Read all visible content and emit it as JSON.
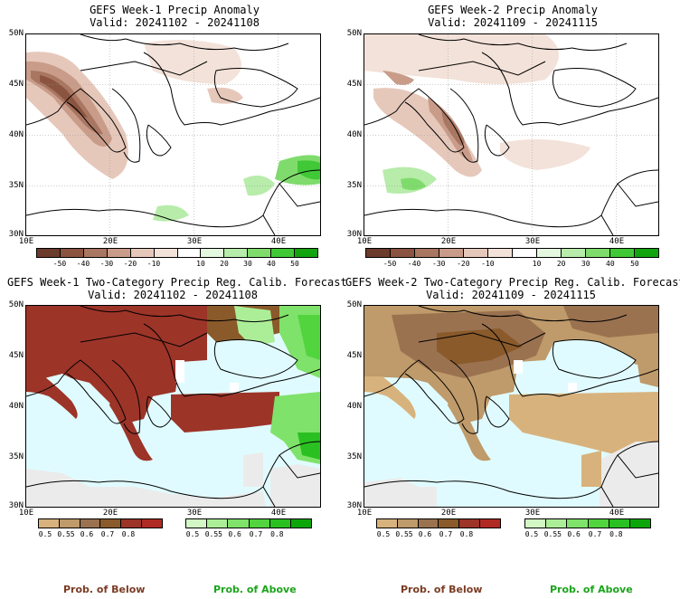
{
  "panels": [
    {
      "title_line1": "GEFS Week-1 Precip Anomaly",
      "title_line2": "Valid: 20241102 - 20241108"
    },
    {
      "title_line1": "GEFS Week-2 Precip Anomaly",
      "title_line2": "Valid: 20241109 - 20241115"
    },
    {
      "title_line1": "GEFS Week-1 Two-Category Precip Reg. Calib. Forecast",
      "title_line2": "Valid: 20241102 - 20241108"
    },
    {
      "title_line1": "GEFS Week-2 Two-Category Precip Reg. Calib. Forecast",
      "title_line2": "Valid: 20241109 - 20241115"
    }
  ],
  "lat_labels": [
    "50N",
    "45N",
    "40N",
    "35N",
    "30N"
  ],
  "lon_labels": [
    "10E",
    "20E",
    "30E",
    "40E"
  ],
  "anomaly_scale": {
    "ticks": [
      "-50",
      "-40",
      "-30",
      "-20",
      "-10",
      "10",
      "20",
      "30",
      "40",
      "50"
    ],
    "colors": [
      "#6b3b2b",
      "#8a5440",
      "#a97662",
      "#c99c8a",
      "#e6c8bb",
      "#f3e2d9",
      "#ffffff",
      "#e4f7df",
      "#b7ecaa",
      "#7fdc6c",
      "#40c836",
      "#12a40e"
    ]
  },
  "below_scale": {
    "ticks": [
      "0.5",
      "0.55",
      "0.6",
      "0.7",
      "0.8"
    ],
    "colors": [
      "#d8b27d",
      "#bf9a6a",
      "#9a7250",
      "#8a5a2b",
      "#9c3428",
      "#b02a24"
    ]
  },
  "above_scale": {
    "ticks": [
      "0.5",
      "0.55",
      "0.6",
      "0.7",
      "0.8"
    ],
    "colors": [
      "#d2f7c4",
      "#acee98",
      "#7fe26a",
      "#52d43f",
      "#2ac022",
      "#0ca60a"
    ]
  },
  "footer": {
    "below_label": "Prob. of Below",
    "above_label": "Prob. of Above"
  },
  "colors": {
    "sea": "#e0fbff",
    "land_line": "#000000",
    "below_text": "#7a3b22",
    "above_text": "#1aa51a"
  }
}
